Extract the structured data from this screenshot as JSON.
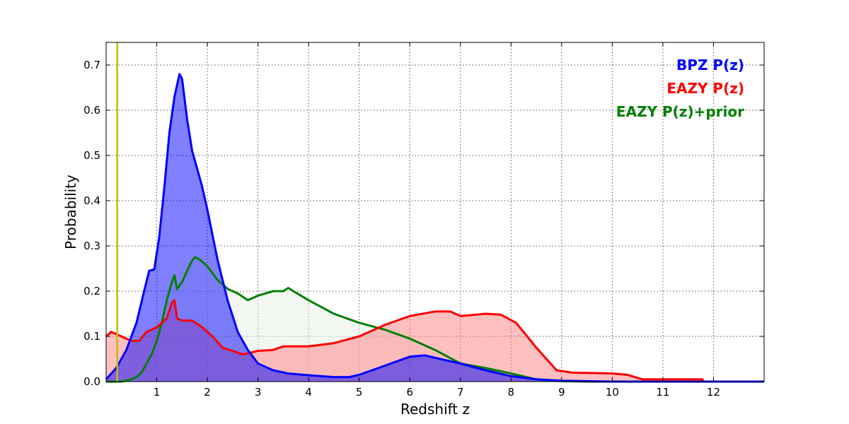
{
  "chart_data": {
    "type": "area",
    "title": "",
    "xlabel": "Redshift z",
    "ylabel": "Probability",
    "xlim": [
      0,
      13
    ],
    "ylim": [
      0,
      0.75
    ],
    "xticks": [
      1,
      2,
      3,
      4,
      5,
      6,
      7,
      8,
      9,
      10,
      11,
      12
    ],
    "yticks": [
      0.0,
      0.1,
      0.2,
      0.3,
      0.4,
      0.5,
      0.6,
      0.7
    ],
    "ytick_labels": [
      "0.0",
      "0.1",
      "0.2",
      "0.3",
      "0.4",
      "0.5",
      "0.6",
      "0.7"
    ],
    "grid": true,
    "legend_position": "top-right",
    "vertical_line": {
      "x": 0.22,
      "color": "#bfbf00"
    },
    "series": [
      {
        "name": "EAZY P(z)+prior",
        "color": "#008000",
        "fill": "#e6f0e6",
        "points": [
          [
            0,
            0
          ],
          [
            0.3,
            0
          ],
          [
            0.5,
            0.005
          ],
          [
            0.6,
            0.01
          ],
          [
            0.7,
            0.02
          ],
          [
            0.8,
            0.04
          ],
          [
            0.9,
            0.06
          ],
          [
            1.0,
            0.09
          ],
          [
            1.1,
            0.13
          ],
          [
            1.2,
            0.18
          ],
          [
            1.3,
            0.22
          ],
          [
            1.35,
            0.235
          ],
          [
            1.4,
            0.205
          ],
          [
            1.5,
            0.22
          ],
          [
            1.6,
            0.245
          ],
          [
            1.7,
            0.268
          ],
          [
            1.76,
            0.275
          ],
          [
            1.85,
            0.27
          ],
          [
            2.0,
            0.255
          ],
          [
            2.2,
            0.225
          ],
          [
            2.4,
            0.205
          ],
          [
            2.6,
            0.195
          ],
          [
            2.8,
            0.18
          ],
          [
            3.0,
            0.19
          ],
          [
            3.3,
            0.2
          ],
          [
            3.5,
            0.2
          ],
          [
            3.6,
            0.207
          ],
          [
            3.7,
            0.2
          ],
          [
            4.0,
            0.18
          ],
          [
            4.5,
            0.15
          ],
          [
            5.0,
            0.13
          ],
          [
            5.5,
            0.115
          ],
          [
            6.0,
            0.095
          ],
          [
            6.5,
            0.07
          ],
          [
            7.0,
            0.04
          ],
          [
            7.5,
            0.03
          ],
          [
            8.0,
            0.018
          ],
          [
            8.5,
            0.005
          ],
          [
            9.0,
            0.001
          ],
          [
            9.5,
            0
          ],
          [
            13,
            0
          ]
        ]
      },
      {
        "name": "EAZY P(z)",
        "color": "#ff0000",
        "fill": "#ff8080",
        "points": [
          [
            0,
            0.1
          ],
          [
            0.1,
            0.11
          ],
          [
            0.3,
            0.1
          ],
          [
            0.5,
            0.09
          ],
          [
            0.65,
            0.09
          ],
          [
            0.8,
            0.11
          ],
          [
            1.0,
            0.12
          ],
          [
            1.1,
            0.13
          ],
          [
            1.2,
            0.14
          ],
          [
            1.3,
            0.175
          ],
          [
            1.35,
            0.18
          ],
          [
            1.4,
            0.14
          ],
          [
            1.5,
            0.135
          ],
          [
            1.7,
            0.135
          ],
          [
            1.9,
            0.12
          ],
          [
            2.1,
            0.1
          ],
          [
            2.3,
            0.075
          ],
          [
            2.5,
            0.068
          ],
          [
            2.7,
            0.06
          ],
          [
            3.0,
            0.068
          ],
          [
            3.3,
            0.07
          ],
          [
            3.5,
            0.078
          ],
          [
            4.0,
            0.078
          ],
          [
            4.5,
            0.085
          ],
          [
            5.0,
            0.1
          ],
          [
            5.5,
            0.125
          ],
          [
            6.0,
            0.145
          ],
          [
            6.5,
            0.155
          ],
          [
            6.8,
            0.155
          ],
          [
            7.0,
            0.145
          ],
          [
            7.5,
            0.15
          ],
          [
            7.8,
            0.148
          ],
          [
            8.1,
            0.13
          ],
          [
            8.5,
            0.075
          ],
          [
            8.9,
            0.025
          ],
          [
            9.2,
            0.02
          ],
          [
            10.0,
            0.018
          ],
          [
            10.3,
            0.015
          ],
          [
            10.6,
            0.005
          ],
          [
            11.78,
            0.005
          ],
          [
            11.8,
            0
          ]
        ]
      },
      {
        "name": "BPZ P(z)",
        "color": "#0000ff",
        "fill": "#0000ff",
        "points": [
          [
            0,
            0.005
          ],
          [
            0.2,
            0.03
          ],
          [
            0.4,
            0.07
          ],
          [
            0.6,
            0.13
          ],
          [
            0.75,
            0.2
          ],
          [
            0.85,
            0.245
          ],
          [
            0.95,
            0.248
          ],
          [
            1.05,
            0.32
          ],
          [
            1.15,
            0.43
          ],
          [
            1.25,
            0.55
          ],
          [
            1.35,
            0.63
          ],
          [
            1.45,
            0.68
          ],
          [
            1.5,
            0.67
          ],
          [
            1.6,
            0.58
          ],
          [
            1.7,
            0.51
          ],
          [
            1.8,
            0.47
          ],
          [
            1.9,
            0.43
          ],
          [
            2.0,
            0.38
          ],
          [
            2.2,
            0.27
          ],
          [
            2.4,
            0.18
          ],
          [
            2.6,
            0.11
          ],
          [
            2.8,
            0.07
          ],
          [
            3.0,
            0.04
          ],
          [
            3.3,
            0.025
          ],
          [
            3.6,
            0.018
          ],
          [
            4.0,
            0.014
          ],
          [
            4.5,
            0.01
          ],
          [
            4.8,
            0.01
          ],
          [
            5.0,
            0.015
          ],
          [
            5.5,
            0.035
          ],
          [
            6.0,
            0.055
          ],
          [
            6.3,
            0.058
          ],
          [
            6.6,
            0.05
          ],
          [
            7.0,
            0.04
          ],
          [
            7.5,
            0.025
          ],
          [
            8.0,
            0.012
          ],
          [
            8.5,
            0.005
          ],
          [
            9.0,
            0.002
          ],
          [
            10.0,
            0
          ],
          [
            13,
            0
          ]
        ]
      }
    ],
    "legend": [
      {
        "name": "BPZ P(z)",
        "color": "#0000ff"
      },
      {
        "name": "EAZY P(z)",
        "color": "#ff0000"
      },
      {
        "name": "EAZY P(z)+prior",
        "color": "#008000"
      }
    ]
  }
}
